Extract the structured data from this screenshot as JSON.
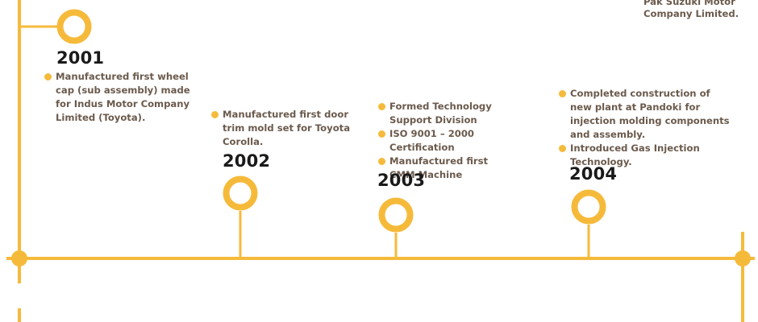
{
  "colors": {
    "accent": "#f6ba3b",
    "year_text": "#1a1a1a",
    "body_text": "#6b5a4c"
  },
  "carryover_text": "Pak Suzuki Motor\nCompany Limited.",
  "milestones": [
    {
      "year": "2001",
      "items": [
        "Manufactured first wheel cap (sub assembly) made for Indus Motor Company Limited (Toyota)."
      ]
    },
    {
      "year": "2002",
      "items": [
        "Manufactured first door trim mold set for Toyota Corolla."
      ]
    },
    {
      "year": "2003",
      "items": [
        "Formed Technology Support Division",
        "ISO 9001 – 2000 Certification",
        "Manufactured first CMM Machine"
      ]
    },
    {
      "year": "2004",
      "items": [
        "Completed construction of new plant at Pandoki for injection molding components and assembly.",
        "Introduced Gas Injection Technology."
      ]
    }
  ]
}
